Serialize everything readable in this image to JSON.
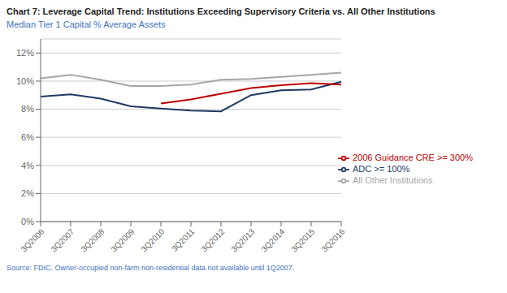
{
  "chart_data": {
    "type": "line",
    "title": "Chart 7: Leverage Capital Trend: Institutions Exceeding Supervisory Criteria vs. All Other Institutions",
    "subtitle": "Median Tier 1 Capital % Average Assets",
    "annotations": [
      "Source: FDIC. Owner-occupied non-farm non-residential data not available until 1Q2007."
    ],
    "categories": [
      "3Q2006",
      "3Q2007",
      "3Q2008",
      "3Q2009",
      "3Q2010",
      "3Q2011",
      "3Q2012",
      "3Q2013",
      "3Q2014",
      "3Q2015",
      "3Q2016"
    ],
    "series": [
      {
        "name": "ADC >= 100%",
        "color": "#1f3864",
        "values": [
          8.9,
          9.05,
          8.75,
          8.2,
          8.05,
          7.9,
          7.85,
          9.0,
          9.35,
          9.4,
          9.95
        ]
      },
      {
        "name": "2006 Guidance CRE >= 300%",
        "color": "#c00000",
        "values": [
          null,
          null,
          null,
          null,
          8.4,
          8.7,
          9.1,
          9.5,
          9.7,
          9.85,
          9.75
        ]
      },
      {
        "name": "All Other Institutions",
        "color": "#a6a6a6",
        "values": [
          10.2,
          10.45,
          10.1,
          9.65,
          9.65,
          9.75,
          10.1,
          10.15,
          10.3,
          10.45,
          10.6
        ]
      }
    ],
    "ylim": [
      0,
      13
    ],
    "yticks": [
      {
        "value": 0,
        "label": "0%"
      },
      {
        "value": 2,
        "label": "2%"
      },
      {
        "value": 4,
        "label": "4%"
      },
      {
        "value": 6,
        "label": "6%"
      },
      {
        "value": 8,
        "label": "8%"
      },
      {
        "value": 10,
        "label": "10%"
      },
      {
        "value": 12,
        "label": "12%"
      }
    ],
    "grid": true,
    "legend": "right"
  }
}
